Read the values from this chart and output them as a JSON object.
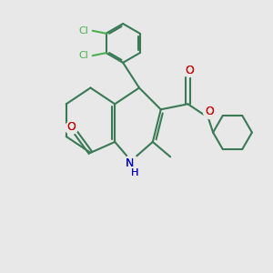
{
  "bg_color": "#e8e8e8",
  "bond_color": "#3a7a55",
  "n_color": "#0000cc",
  "o_color": "#cc0000",
  "cl_color": "#4caf50",
  "figsize": [
    3.0,
    3.0
  ],
  "dpi": 100,
  "xlim": [
    0,
    10
  ],
  "ylim": [
    0,
    10
  ]
}
